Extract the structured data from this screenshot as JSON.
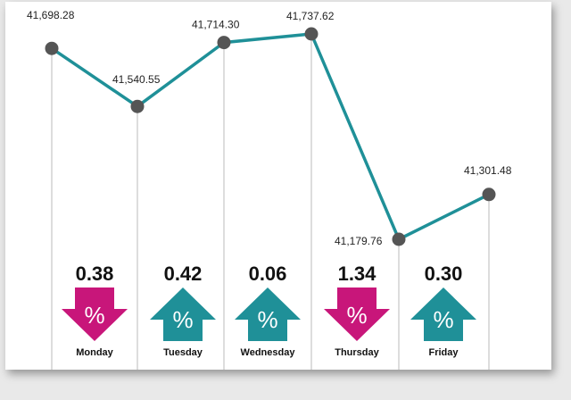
{
  "chart_data": {
    "type": "line",
    "categories": [
      "Monday",
      "Tuesday",
      "Wednesday",
      "Thursday",
      "Friday"
    ],
    "x": [
      "",
      "Monday",
      "Tuesday",
      "Wednesday",
      "Thursday",
      "Friday"
    ],
    "values": [
      41698.28,
      41540.55,
      41714.3,
      41737.62,
      41179.76,
      41301.48
    ],
    "value_labels": [
      "41,698.28",
      "41,540.55",
      "41,714.30",
      "41,737.62",
      "41,179.76",
      "41,301.48"
    ],
    "ylim": [
      41179.76,
      41737.62
    ],
    "grid": false,
    "changes": [
      {
        "day": "Monday",
        "percent": "0.38",
        "direction": "down"
      },
      {
        "day": "Tuesday",
        "percent": "0.42",
        "direction": "up"
      },
      {
        "day": "Wednesday",
        "percent": "0.06",
        "direction": "up"
      },
      {
        "day": "Thursday",
        "percent": "1.34",
        "direction": "down"
      },
      {
        "day": "Friday",
        "percent": "0.30",
        "direction": "up"
      }
    ],
    "percent_symbol": "%",
    "colors": {
      "line": "#1f9098",
      "point": "#555555",
      "up": "#1f9098",
      "down": "#c8167a",
      "vline": "#bbbbbb"
    }
  }
}
